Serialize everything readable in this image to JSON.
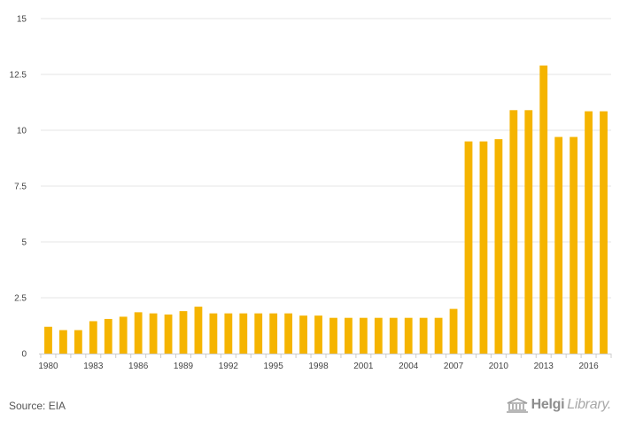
{
  "chart_data": {
    "type": "bar",
    "title": "",
    "xlabel": "",
    "ylabel": "",
    "ylim": [
      0,
      15
    ],
    "yticks": [
      "0",
      "2.5",
      "5",
      "7.5",
      "10",
      "12.5",
      "15"
    ],
    "ytick_values": [
      0,
      2.5,
      5,
      7.5,
      10,
      12.5,
      15
    ],
    "categories": [
      "1980",
      "1981",
      "1982",
      "1983",
      "1984",
      "1985",
      "1986",
      "1987",
      "1988",
      "1989",
      "1990",
      "1991",
      "1992",
      "1993",
      "1994",
      "1995",
      "1996",
      "1997",
      "1998",
      "1999",
      "2000",
      "2001",
      "2002",
      "2003",
      "2004",
      "2005",
      "2006",
      "2007",
      "2008",
      "2009",
      "2010",
      "2011",
      "2012",
      "2013",
      "2014",
      "2015",
      "2016",
      "2017"
    ],
    "xtick_labels": [
      "1980",
      "1983",
      "1986",
      "1989",
      "1992",
      "1995",
      "1998",
      "2001",
      "2004",
      "2007",
      "2010",
      "2013",
      "2016"
    ],
    "values": [
      1.2,
      1.05,
      1.05,
      1.45,
      1.55,
      1.65,
      1.85,
      1.8,
      1.75,
      1.9,
      2.1,
      1.8,
      1.8,
      1.8,
      1.8,
      1.8,
      1.8,
      1.7,
      1.7,
      1.6,
      1.6,
      1.6,
      1.6,
      1.6,
      1.6,
      1.6,
      1.6,
      2.0,
      9.5,
      9.5,
      9.6,
      10.9,
      10.9,
      12.9,
      9.7,
      9.7,
      10.85,
      10.85
    ],
    "bar_color": "#f5b400",
    "grid": true,
    "legend": "none"
  },
  "footer": {
    "source": "Source: EIA",
    "brand_strong": "Helgi",
    "brand_light": "Library."
  }
}
